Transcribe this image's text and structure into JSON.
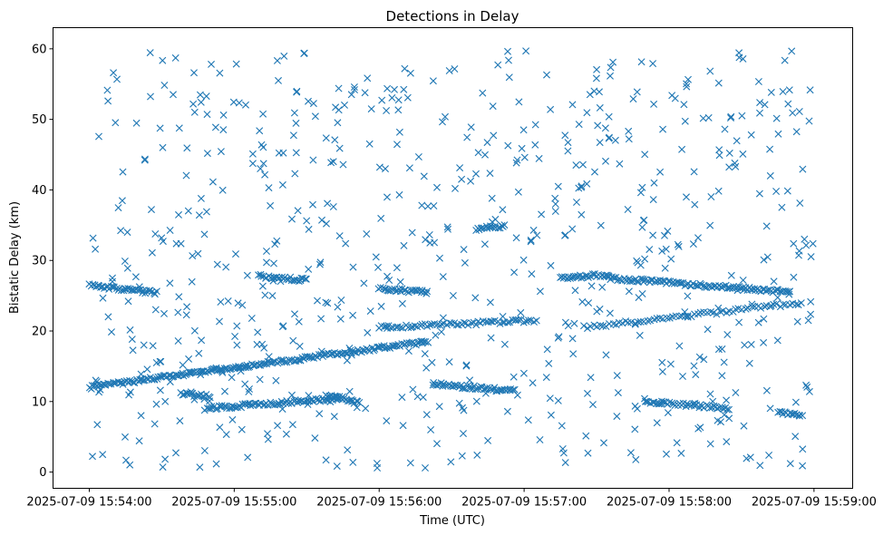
{
  "chart_data": {
    "type": "scatter",
    "title": "Detections in Delay",
    "xlabel": "Time (UTC)",
    "ylabel": "Bistatic Delay (km)",
    "x_tick_labels": [
      "2025-07-09 15:54:00",
      "2025-07-09 15:55:00",
      "2025-07-09 15:56:00",
      "2025-07-09 15:57:00",
      "2025-07-09 15:58:00",
      "2025-07-09 15:59:00"
    ],
    "x_ticks_seconds": [
      0,
      60,
      120,
      180,
      240,
      300
    ],
    "y_ticks": [
      0,
      10,
      20,
      30,
      40,
      50,
      60
    ],
    "xlim_seconds": [
      -15,
      316
    ],
    "ylim": [
      -2.3,
      63
    ],
    "marker": "x",
    "color": "#1f77b4",
    "grid": false,
    "tracks": [
      {
        "x": [
          0,
          28
        ],
        "y": [
          26.5,
          25.4
        ],
        "spacing_s": 0.7
      },
      {
        "x": [
          0,
          140
        ],
        "y": [
          12.0,
          18.5
        ],
        "spacing_s": 0.7
      },
      {
        "x": [
          38,
          50
        ],
        "y": [
          11.0,
          10.8
        ],
        "spacing_s": 0.7
      },
      {
        "x": [
          48,
          105
        ],
        "y": [
          9.0,
          10.5
        ],
        "spacing_s": 0.7
      },
      {
        "x": [
          70,
          90
        ],
        "y": [
          27.8,
          27.2
        ],
        "spacing_s": 0.7
      },
      {
        "x": [
          98,
          112
        ],
        "y": [
          11.0,
          9.8
        ],
        "spacing_s": 0.7
      },
      {
        "x": [
          120,
          140
        ],
        "y": [
          26.0,
          25.5
        ],
        "spacing_s": 0.7
      },
      {
        "x": [
          120,
          185
        ],
        "y": [
          20.5,
          21.5
        ],
        "spacing_s": 1.0
      },
      {
        "x": [
          142,
          176
        ],
        "y": [
          12.5,
          11.5
        ],
        "spacing_s": 0.7
      },
      {
        "x": [
          160,
          172
        ],
        "y": [
          34.5,
          34.8
        ],
        "spacing_s": 0.7
      },
      {
        "x": [
          195,
          215
        ],
        "y": [
          27.5,
          28.0
        ],
        "spacing_s": 0.7
      },
      {
        "x": [
          205,
          295
        ],
        "y": [
          20.5,
          24.0
        ],
        "spacing_s": 1.3
      },
      {
        "x": [
          215,
          290
        ],
        "y": [
          27.5,
          25.5
        ],
        "spacing_s": 0.7
      },
      {
        "x": [
          230,
          265
        ],
        "y": [
          10.0,
          9.0
        ],
        "spacing_s": 0.8
      },
      {
        "x": [
          285,
          295
        ],
        "y": [
          8.5,
          8.0
        ],
        "spacing_s": 0.7
      }
    ],
    "noise": {
      "count": 700,
      "x_range": [
        0,
        300
      ],
      "y_range": [
        0.5,
        59.8
      ]
    }
  }
}
